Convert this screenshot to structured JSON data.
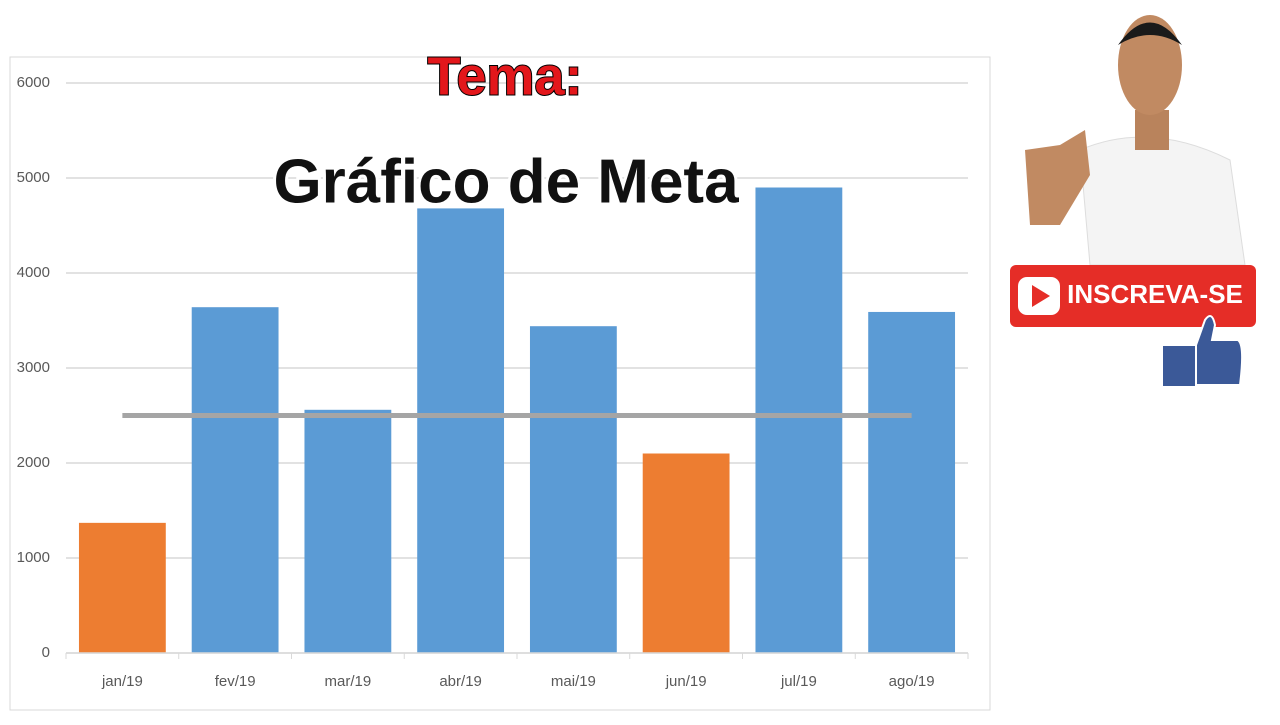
{
  "overlay": {
    "tema": "Tema:",
    "subtitle": "Gráfico de Meta"
  },
  "subscribe_button": {
    "label": "INSCREVA-SE"
  },
  "chart_data": {
    "type": "bar",
    "categories": [
      "jan/19",
      "fev/19",
      "mar/19",
      "abr/19",
      "mai/19",
      "jun/19",
      "jul/19",
      "ago/19"
    ],
    "series": [
      {
        "type": "bar",
        "values": [
          1370,
          3640,
          2560,
          4680,
          3440,
          2100,
          4900,
          3590
        ],
        "colors": [
          "#ed7d31",
          "#5b9bd5",
          "#5b9bd5",
          "#5b9bd5",
          "#5b9bd5",
          "#ed7d31",
          "#5b9bd5",
          "#5b9bd5"
        ]
      },
      {
        "type": "line",
        "values": [
          2500,
          2500,
          2500,
          2500,
          2500,
          2500,
          2500,
          2500
        ],
        "color": "#a5a5a5"
      }
    ],
    "ylim": [
      0,
      6000
    ],
    "yticks": [
      0,
      1000,
      2000,
      3000,
      4000,
      5000,
      6000
    ],
    "grid": true
  }
}
